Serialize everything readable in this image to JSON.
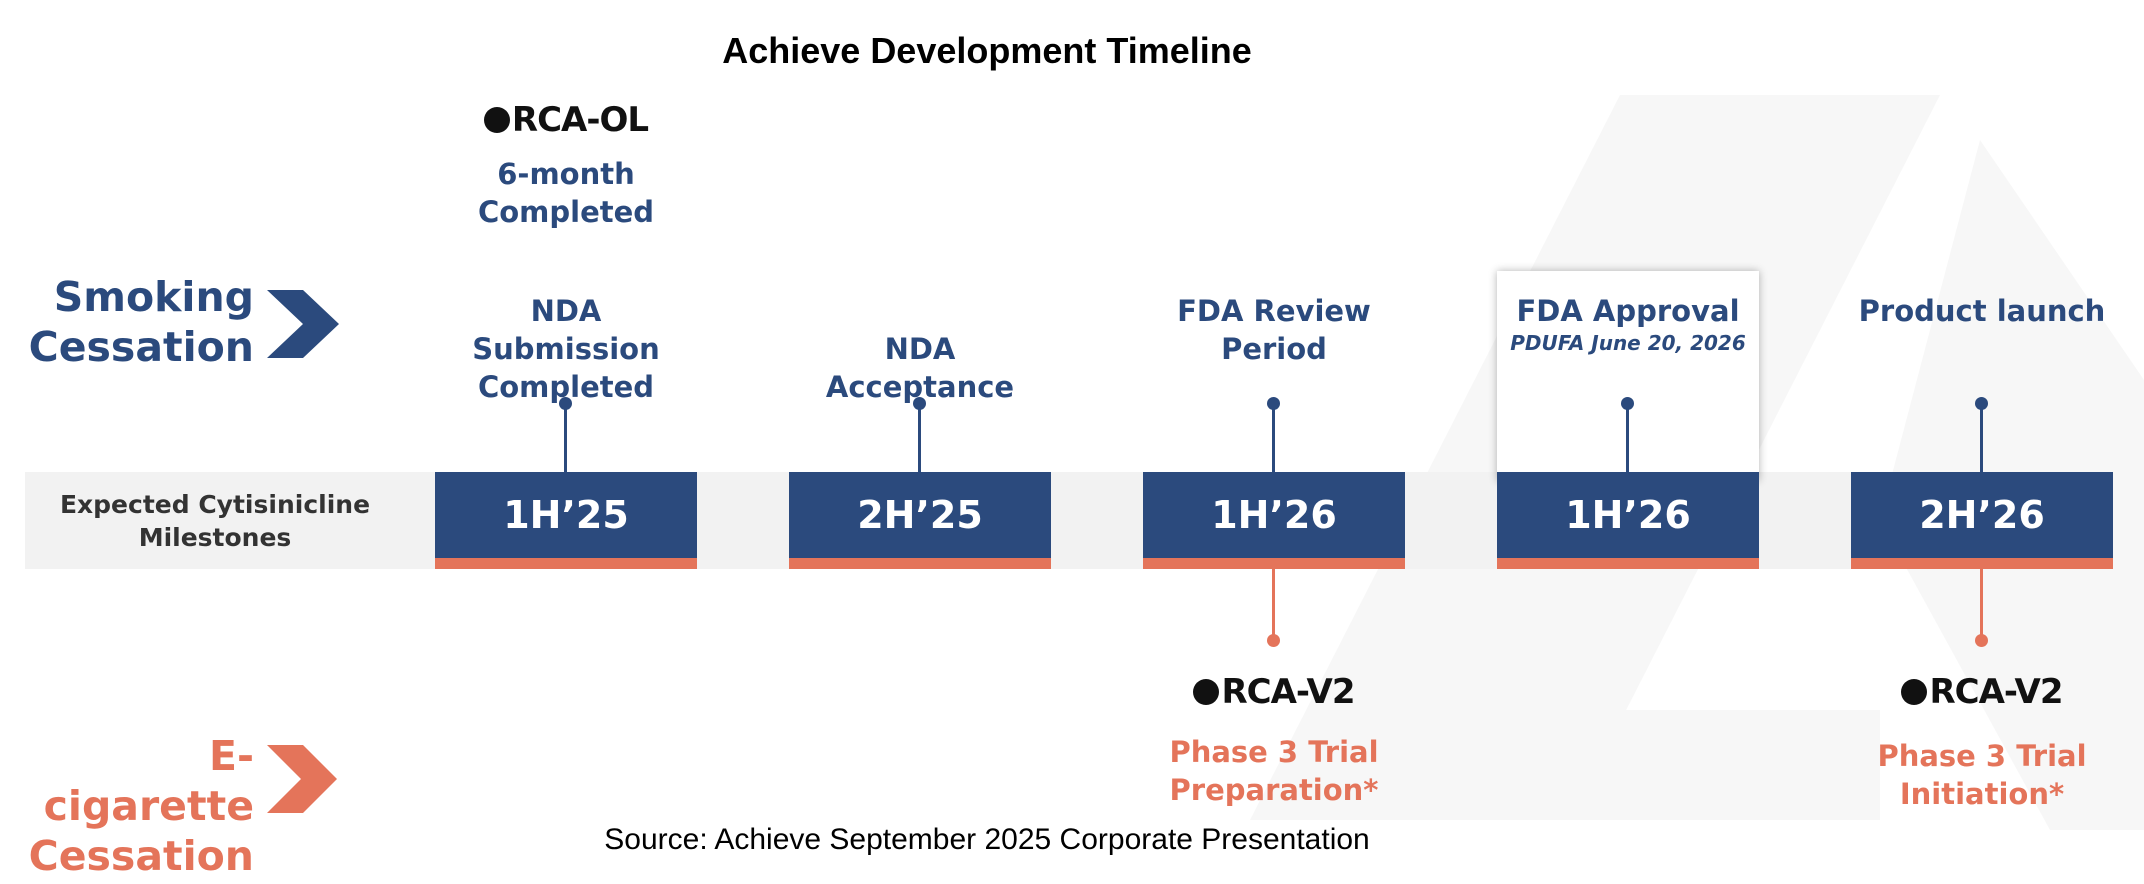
{
  "title": "Achieve Development Timeline",
  "rows": {
    "smoking": "Smoking Cessation",
    "ecig": "E-cigarette Cessation",
    "band_label": "Expected Cytisinicline Milestones"
  },
  "logos": {
    "orca_ol": "RCA-OL",
    "orca_v2": "RCA-V2"
  },
  "top_note": [
    "6-month",
    "Completed"
  ],
  "milestones": [
    {
      "label": [
        "NDA",
        "Submission",
        "Completed"
      ],
      "period": "1H’25"
    },
    {
      "label": [
        "NDA",
        "Acceptance"
      ],
      "period": "2H’25"
    },
    {
      "label": [
        "FDA Review",
        "Period"
      ],
      "period": "1H’26"
    },
    {
      "label": [
        "FDA Approval"
      ],
      "sub": "PDUFA June 20, 2026",
      "period": "1H’26"
    },
    {
      "label": [
        "Product launch"
      ],
      "period": "2H’26"
    }
  ],
  "ecig_milestones": [
    {
      "label": [
        "Phase 3 Trial",
        "Preparation*"
      ]
    },
    {
      "label": [
        "Phase 3 Trial",
        "Initiation*"
      ]
    }
  ],
  "source": "Source: Achieve September 2025 Corporate Presentation",
  "colors": {
    "navy": "#2b4a7d",
    "orange": "#e4745a",
    "band": "#f2f2f2"
  }
}
